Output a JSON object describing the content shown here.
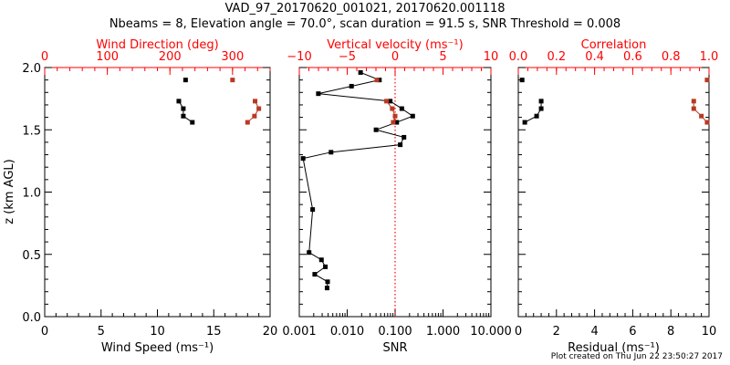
{
  "title_line1": "VAD_97_20170620_001021, 20170620.001118",
  "title_line2": "Nbeams = 8, Elevation angle = 70.0°, scan duration = 91.5 s, SNR Threshold = 0.008",
  "footer": "Plot created on Thu Jun 22 23:50:27 2017",
  "colors": {
    "axis_top": "#ff0000",
    "series_red": "#b83a22",
    "series_black": "#000000"
  },
  "chart_data": [
    {
      "type": "line",
      "ylabel": "z (km AGL)",
      "ylim": [
        0,
        2.0
      ],
      "yticks": [
        "0.0",
        "0.5",
        "1.0",
        "1.5",
        "2.0"
      ],
      "bottom_axis": {
        "label": "Wind Speed (ms⁻¹)",
        "range": [
          0,
          20
        ],
        "scale": "linear",
        "ticks": [
          "0",
          "5",
          "10",
          "15",
          "20"
        ]
      },
      "top_axis": {
        "label": "Wind Direction (deg)",
        "range": [
          0,
          360
        ],
        "scale": "linear",
        "ticks": [
          "0",
          "100",
          "200",
          "300"
        ]
      },
      "series": [
        {
          "name": "Wind Speed",
          "axis": "bottom",
          "color": "black",
          "points": [
            [
              12.5,
              1.9
            ],
            [
              11.9,
              1.73
            ],
            [
              12.3,
              1.67
            ],
            [
              12.3,
              1.61
            ],
            [
              13.1,
              1.56
            ]
          ],
          "connect_from": 1
        },
        {
          "name": "Wind Direction",
          "axis": "top",
          "color": "red",
          "points": [
            [
              300,
              1.9
            ],
            [
              336,
              1.73
            ],
            [
              342,
              1.67
            ],
            [
              335,
              1.61
            ],
            [
              324,
              1.56
            ]
          ],
          "connect_from": 1
        }
      ]
    },
    {
      "type": "line",
      "ylim": [
        0,
        2.0
      ],
      "bottom_axis": {
        "label": "SNR",
        "range": [
          0.001,
          10
        ],
        "scale": "log",
        "ticks": [
          "0.001",
          "0.010",
          "0.100",
          "1.000",
          "10.000"
        ]
      },
      "top_axis": {
        "label": "Vertical velocity (ms⁻¹)",
        "range": [
          -10,
          10
        ],
        "scale": "linear",
        "ticks": [
          "−10",
          "−5",
          "0",
          "5",
          "10"
        ]
      },
      "threshold_line": {
        "axis": "bottom",
        "value": 0.1
      },
      "series": [
        {
          "name": "SNR",
          "axis": "bottom",
          "color": "black",
          "points": [
            [
              0.019,
              1.96
            ],
            [
              0.047,
              1.9
            ],
            [
              0.0123,
              1.85
            ],
            [
              0.0025,
              1.79
            ],
            [
              0.079,
              1.73
            ],
            [
              0.138,
              1.67
            ],
            [
              0.233,
              1.61
            ],
            [
              0.108,
              1.56
            ],
            [
              0.04,
              1.5
            ],
            [
              0.153,
              1.44
            ],
            [
              0.128,
              1.38
            ],
            [
              0.0046,
              1.32
            ],
            [
              0.0012,
              1.27
            ],
            [
              0.0019,
              0.86
            ],
            [
              0.0016,
              0.515
            ],
            [
              0.0029,
              0.456
            ],
            [
              0.0035,
              0.4
            ],
            [
              0.0021,
              0.34
            ],
            [
              0.0039,
              0.28
            ],
            [
              0.0038,
              0.23
            ]
          ],
          "connect_from": 0
        },
        {
          "name": "Vertical velocity",
          "axis": "top",
          "color": "red",
          "points": [
            [
              -1.9,
              1.9
            ],
            [
              -0.9,
              1.73
            ],
            [
              -0.3,
              1.67
            ],
            [
              0.0,
              1.61
            ],
            [
              -0.2,
              1.56
            ]
          ],
          "connect_from": 1
        }
      ]
    },
    {
      "type": "line",
      "ylim": [
        0,
        2.0
      ],
      "bottom_axis": {
        "label": "Residual (ms⁻¹)",
        "range": [
          0,
          10
        ],
        "scale": "linear",
        "ticks": [
          "0",
          "2",
          "4",
          "6",
          "8",
          "10"
        ]
      },
      "top_axis": {
        "label": "Correlation",
        "range": [
          0,
          1.0
        ],
        "scale": "linear",
        "ticks": [
          "0.0",
          "0.2",
          "0.4",
          "0.6",
          "0.8",
          "1.0"
        ]
      },
      "series": [
        {
          "name": "Residual",
          "axis": "bottom",
          "color": "black",
          "points": [
            [
              0.2,
              1.9
            ],
            [
              1.2,
              1.73
            ],
            [
              1.2,
              1.67
            ],
            [
              0.96,
              1.61
            ],
            [
              0.34,
              1.56
            ]
          ],
          "connect_from": 1
        },
        {
          "name": "Correlation",
          "axis": "top",
          "color": "red",
          "points": [
            [
              0.99,
              1.9
            ],
            [
              0.92,
              1.73
            ],
            [
              0.92,
              1.67
            ],
            [
              0.96,
              1.61
            ],
            [
              0.99,
              1.56
            ]
          ],
          "connect_from": 1
        }
      ]
    }
  ]
}
